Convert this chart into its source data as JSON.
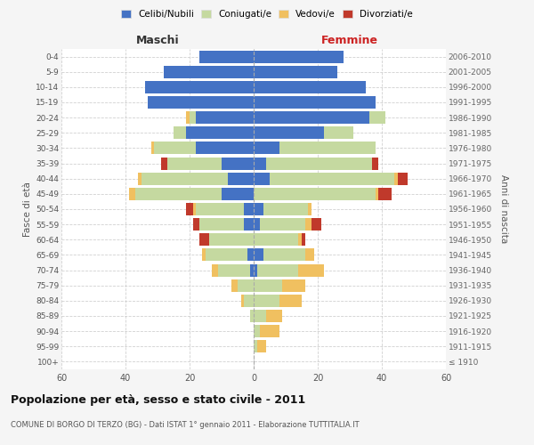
{
  "age_groups": [
    "100+",
    "95-99",
    "90-94",
    "85-89",
    "80-84",
    "75-79",
    "70-74",
    "65-69",
    "60-64",
    "55-59",
    "50-54",
    "45-49",
    "40-44",
    "35-39",
    "30-34",
    "25-29",
    "20-24",
    "15-19",
    "10-14",
    "5-9",
    "0-4"
  ],
  "birth_years": [
    "≤ 1910",
    "1911-1915",
    "1916-1920",
    "1921-1925",
    "1926-1930",
    "1931-1935",
    "1936-1940",
    "1941-1945",
    "1946-1950",
    "1951-1955",
    "1956-1960",
    "1961-1965",
    "1966-1970",
    "1971-1975",
    "1976-1980",
    "1981-1985",
    "1986-1990",
    "1991-1995",
    "1996-2000",
    "2001-2005",
    "2006-2010"
  ],
  "male": {
    "celibi": [
      0,
      0,
      0,
      0,
      0,
      0,
      1,
      2,
      0,
      3,
      3,
      10,
      8,
      10,
      18,
      21,
      18,
      33,
      34,
      28,
      17
    ],
    "coniugati": [
      0,
      0,
      0,
      1,
      3,
      5,
      10,
      13,
      14,
      14,
      15,
      27,
      27,
      17,
      13,
      4,
      2,
      0,
      0,
      0,
      0
    ],
    "vedovi": [
      0,
      0,
      0,
      0,
      1,
      2,
      2,
      1,
      0,
      0,
      1,
      2,
      1,
      0,
      1,
      0,
      1,
      0,
      0,
      0,
      0
    ],
    "divorziati": [
      0,
      0,
      0,
      0,
      0,
      0,
      0,
      0,
      3,
      2,
      2,
      0,
      0,
      2,
      0,
      0,
      0,
      0,
      0,
      0,
      0
    ]
  },
  "female": {
    "nubili": [
      0,
      0,
      0,
      0,
      0,
      0,
      1,
      3,
      0,
      2,
      3,
      0,
      5,
      4,
      8,
      22,
      36,
      38,
      35,
      26,
      28
    ],
    "coniugate": [
      0,
      1,
      2,
      4,
      8,
      9,
      13,
      13,
      14,
      14,
      14,
      38,
      39,
      33,
      30,
      9,
      5,
      0,
      0,
      0,
      0
    ],
    "vedove": [
      0,
      3,
      6,
      5,
      7,
      7,
      8,
      3,
      1,
      2,
      1,
      1,
      1,
      0,
      0,
      0,
      0,
      0,
      0,
      0,
      0
    ],
    "divorziate": [
      0,
      0,
      0,
      0,
      0,
      0,
      0,
      0,
      1,
      3,
      0,
      4,
      3,
      2,
      0,
      0,
      0,
      0,
      0,
      0,
      0
    ]
  },
  "colors": {
    "celibi": "#4472c4",
    "coniugati": "#c5d9a0",
    "vedovi": "#f0c060",
    "divorziati": "#c0392b"
  },
  "xlim": 60,
  "title": "Popolazione per età, sesso e stato civile - 2011",
  "subtitle": "COMUNE DI BORGO DI TERZO (BG) - Dati ISTAT 1° gennaio 2011 - Elaborazione TUTTITALIA.IT",
  "xlabel_left": "Maschi",
  "xlabel_right": "Femmine",
  "ylabel_left": "Fasce di età",
  "ylabel_right": "Anni di nascita",
  "legend_labels": [
    "Celibi/Nubili",
    "Coniugati/e",
    "Vedovi/e",
    "Divorziati/e"
  ],
  "bg_color": "#f5f5f5",
  "plot_bg_color": "#ffffff",
  "grid_color": "#cccccc"
}
